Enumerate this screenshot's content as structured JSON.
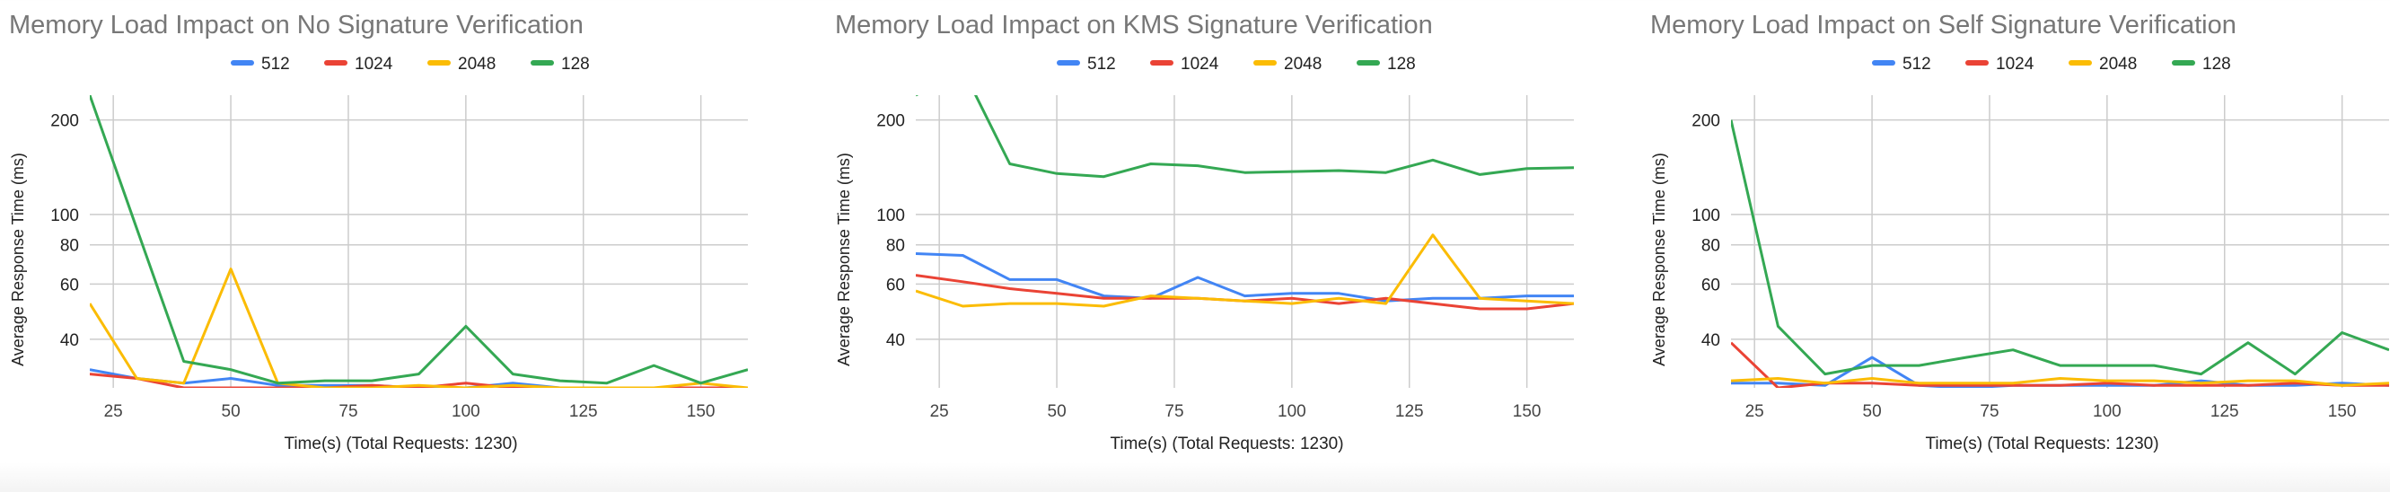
{
  "chart_data": [
    {
      "type": "line",
      "title": "Memory Load Impact on No Signature Verification",
      "xlabel": "Time(s) (Total Requests: 1230)",
      "ylabel": "Average Response Time (ms)",
      "y_scale": "log",
      "xlim": [
        20,
        160
      ],
      "ylim": [
        28,
        240
      ],
      "x_ticks": [
        25,
        50,
        75,
        100,
        125,
        150
      ],
      "y_ticks": [
        40,
        60,
        80,
        100,
        200
      ],
      "legend_position": "top",
      "grid": true,
      "x": [
        20,
        30,
        40,
        50,
        60,
        70,
        80,
        90,
        100,
        110,
        120,
        130,
        140,
        150,
        160
      ],
      "series": [
        {
          "name": "512",
          "color": "#4285F4",
          "values": [
            32,
            30,
            29,
            30,
            28.5,
            28.5,
            28.5,
            28,
            28,
            29,
            28,
            28,
            28,
            28,
            28
          ]
        },
        {
          "name": "1024",
          "color": "#EA4335",
          "values": [
            31,
            30,
            28,
            28,
            28,
            28,
            28.5,
            28,
            29,
            28,
            28,
            28,
            28,
            28,
            28
          ]
        },
        {
          "name": "2048",
          "color": "#FBBC04",
          "values": [
            52,
            30,
            29,
            67,
            29,
            28,
            28,
            28.5,
            28,
            28.5,
            28,
            28,
            28,
            29,
            28
          ]
        },
        {
          "name": "128",
          "color": "#34A853",
          "values": [
            240,
            90,
            34,
            32,
            29,
            29.5,
            29.5,
            31,
            44,
            31,
            29.5,
            29,
            33,
            29,
            32
          ]
        }
      ]
    },
    {
      "type": "line",
      "title": "Memory Load Impact on KMS Signature Verification",
      "xlabel": "Time(s) (Total Requests: 1230)",
      "ylabel": "Average Response Time (ms)",
      "y_scale": "log",
      "xlim": [
        20,
        160
      ],
      "ylim": [
        28,
        240
      ],
      "x_ticks": [
        25,
        50,
        75,
        100,
        125,
        150
      ],
      "y_ticks": [
        40,
        60,
        80,
        100,
        200
      ],
      "legend_position": "top",
      "grid": true,
      "x": [
        20,
        30,
        40,
        50,
        60,
        70,
        80,
        90,
        100,
        110,
        120,
        130,
        140,
        150,
        160
      ],
      "series": [
        {
          "name": "512",
          "color": "#4285F4",
          "values": [
            75,
            74,
            62,
            62,
            55,
            54,
            63,
            55,
            56,
            56,
            53,
            54,
            54,
            55,
            55
          ]
        },
        {
          "name": "1024",
          "color": "#EA4335",
          "values": [
            64,
            61,
            58,
            56,
            54,
            54,
            54,
            53,
            54,
            52,
            54,
            52,
            50,
            50,
            52
          ]
        },
        {
          "name": "2048",
          "color": "#FBBC04",
          "values": [
            57,
            51,
            52,
            52,
            51,
            55,
            54,
            53,
            52,
            54,
            52,
            86,
            54,
            53,
            52
          ]
        },
        {
          "name": "128",
          "color": "#34A853",
          "values": [
            240,
            290,
            145,
            135,
            132,
            145,
            143,
            136,
            137,
            138,
            136,
            149,
            134,
            140,
            141
          ]
        }
      ]
    },
    {
      "type": "line",
      "title": "Memory Load Impact on Self Signature Verification",
      "xlabel": "Time(s) (Total Requests: 1230)",
      "ylabel": "Average Response Time (ms)",
      "y_scale": "log",
      "xlim": [
        20,
        160
      ],
      "ylim": [
        28,
        240
      ],
      "x_ticks": [
        25,
        50,
        75,
        100,
        125,
        150
      ],
      "y_ticks": [
        40,
        60,
        80,
        100,
        200
      ],
      "legend_position": "top",
      "grid": true,
      "x": [
        20,
        30,
        40,
        50,
        60,
        70,
        80,
        90,
        100,
        110,
        120,
        130,
        140,
        150,
        160
      ],
      "series": [
        {
          "name": "512",
          "color": "#4285F4",
          "values": [
            29,
            29,
            28.5,
            35,
            28.5,
            28,
            28.5,
            28.5,
            28.5,
            28.5,
            29.5,
            28.5,
            28.5,
            29,
            28.5
          ]
        },
        {
          "name": "1024",
          "color": "#EA4335",
          "values": [
            39,
            28,
            29,
            29,
            28.5,
            28.5,
            28.5,
            28.5,
            29,
            28.5,
            28.5,
            28.5,
            29,
            28.5,
            28.5
          ]
        },
        {
          "name": "2048",
          "color": "#FBBC04",
          "values": [
            29.5,
            30,
            29,
            30,
            29,
            29,
            29,
            30,
            29.5,
            29.5,
            29,
            29.5,
            29.5,
            28.5,
            29
          ]
        },
        {
          "name": "128",
          "color": "#34A853",
          "values": [
            200,
            44,
            31,
            33,
            33,
            35,
            37,
            33,
            33,
            33,
            31,
            39,
            31,
            42,
            37
          ]
        }
      ]
    }
  ]
}
